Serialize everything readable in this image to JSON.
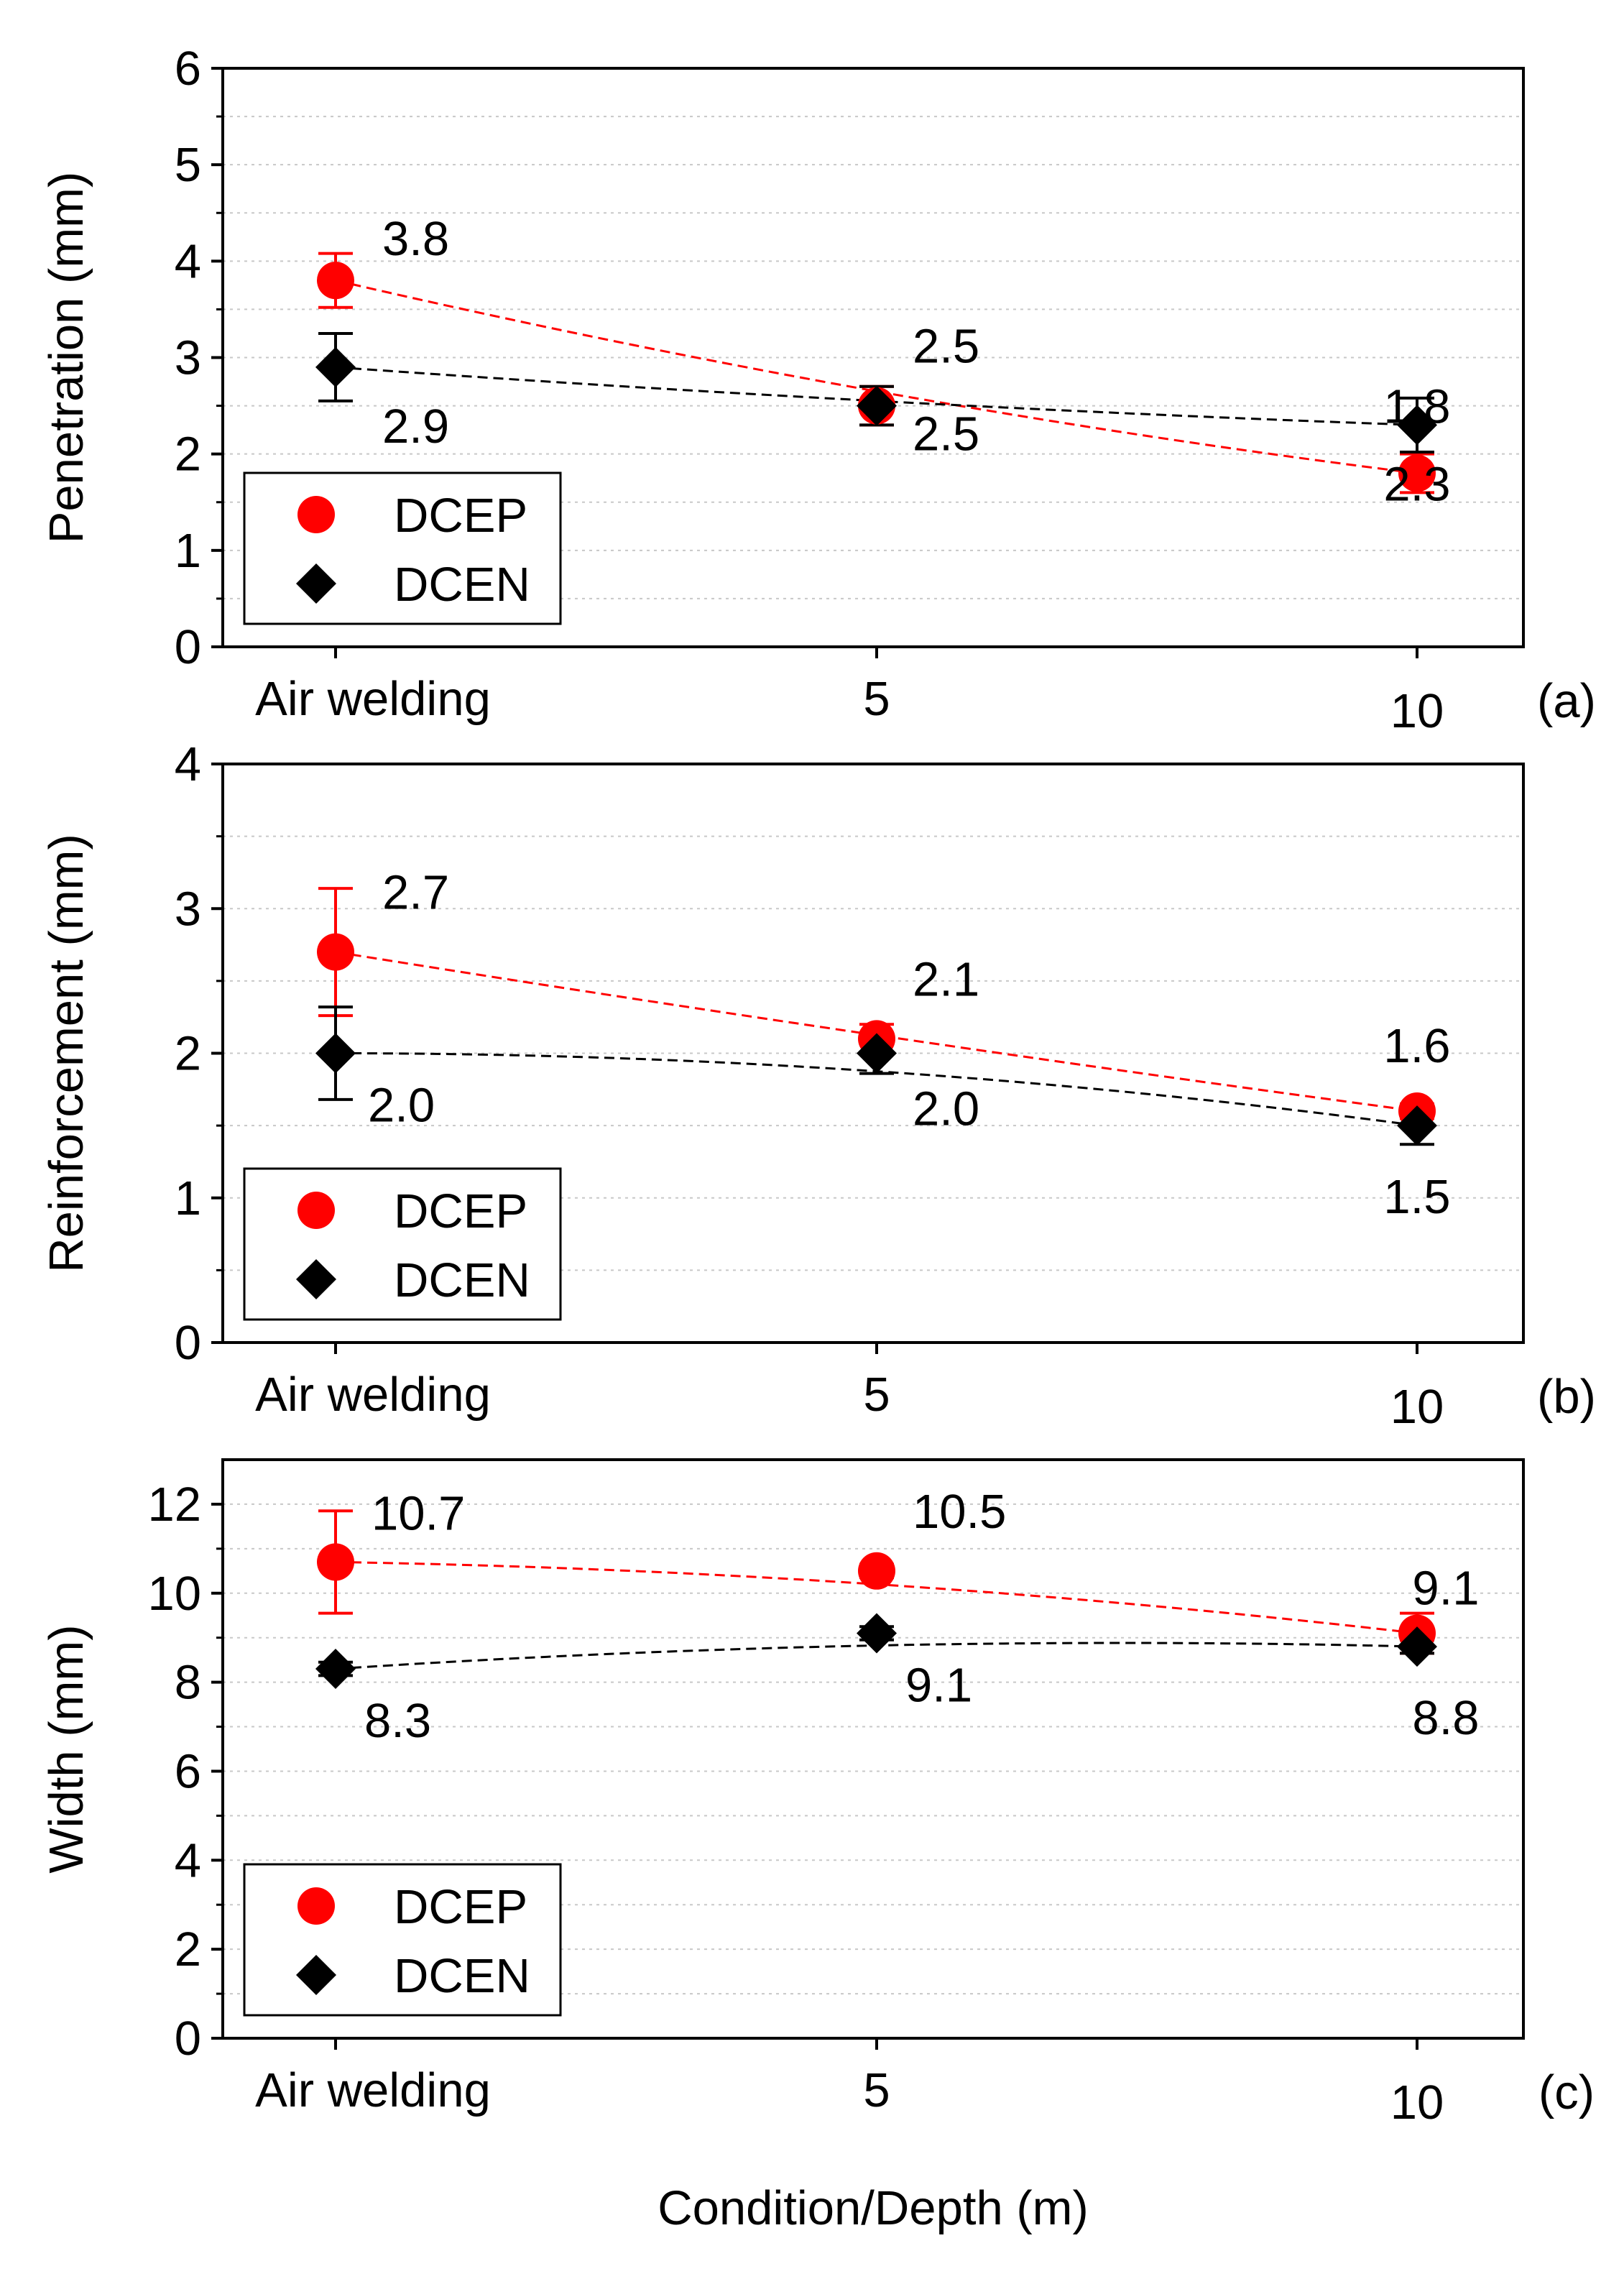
{
  "chart_data": [
    {
      "type": "line",
      "panel_label": "(a)",
      "ylabel": "Penetration (mm)",
      "xlabel": "",
      "categories": [
        "Air welding",
        "5",
        "10"
      ],
      "ylim": [
        0,
        6
      ],
      "yticks": [
        0,
        1,
        2,
        3,
        4,
        5,
        6
      ],
      "ytick_labels": [
        "0",
        "1",
        "2",
        "3",
        "4",
        "5",
        "6"
      ],
      "grid": "horizontal dotted",
      "legend_position": "bottom-left",
      "series": [
        {
          "name": "DCEP",
          "color": "#ff0000",
          "marker": "circle",
          "values": [
            3.8,
            2.5,
            1.8
          ],
          "errors": [
            0.28,
            0.2,
            0.2
          ],
          "labels": [
            "3.8",
            "2.5",
            "1.8"
          ]
        },
        {
          "name": "DCEN",
          "color": "#000000",
          "marker": "diamond",
          "values": [
            2.9,
            2.5,
            2.3
          ],
          "errors": [
            0.35,
            0.2,
            0.28
          ],
          "labels": [
            "2.9",
            "2.5",
            "2.3"
          ]
        }
      ]
    },
    {
      "type": "line",
      "panel_label": "(b)",
      "ylabel": "Reinforcement (mm)",
      "xlabel": "",
      "categories": [
        "Air welding",
        "5",
        "10"
      ],
      "ylim": [
        0,
        4
      ],
      "yticks": [
        0,
        1,
        2,
        3,
        4
      ],
      "ytick_labels": [
        "0",
        "1",
        "2",
        "3",
        "4"
      ],
      "grid": "horizontal dotted",
      "legend_position": "bottom-left",
      "series": [
        {
          "name": "DCEP",
          "color": "#ff0000",
          "marker": "circle",
          "values": [
            2.7,
            2.1,
            1.6
          ],
          "errors": [
            0.44,
            0.1,
            0.05
          ],
          "labels": [
            "2.7",
            "2.1",
            "1.6"
          ]
        },
        {
          "name": "DCEN",
          "color": "#000000",
          "marker": "diamond",
          "values": [
            2.0,
            2.0,
            1.5
          ],
          "errors": [
            0.32,
            0.14,
            0.13
          ],
          "labels": [
            "2.0",
            "2.0",
            "1.5"
          ]
        }
      ]
    },
    {
      "type": "line",
      "panel_label": "(c)",
      "ylabel": "Width (mm)",
      "xlabel": "Condition/Depth (m)",
      "categories": [
        "Air welding",
        "5",
        "10"
      ],
      "ylim": [
        0,
        13
      ],
      "yticks": [
        0,
        2,
        4,
        6,
        8,
        10,
        12
      ],
      "ytick_labels": [
        "0",
        "2",
        "4",
        "6",
        "8",
        "10",
        "12"
      ],
      "grid": "horizontal dotted",
      "legend_position": "bottom-left",
      "series": [
        {
          "name": "DCEP",
          "color": "#ff0000",
          "marker": "circle",
          "values": [
            10.7,
            10.5,
            9.1
          ],
          "errors": [
            1.15,
            0.15,
            0.45
          ],
          "labels": [
            "10.7",
            "10.5",
            "9.1"
          ]
        },
        {
          "name": "DCEN",
          "color": "#000000",
          "marker": "diamond",
          "values": [
            8.3,
            9.1,
            8.8
          ],
          "errors": [
            0.15,
            0.15,
            0.15
          ],
          "labels": [
            "8.3",
            "9.1",
            "8.8"
          ]
        }
      ]
    }
  ]
}
